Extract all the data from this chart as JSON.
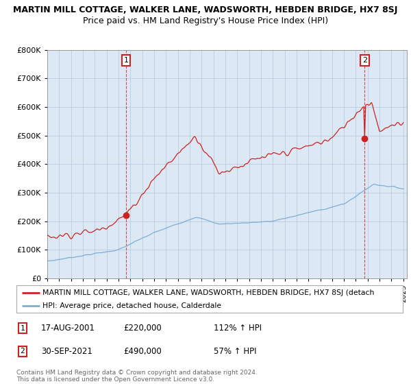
{
  "title": "MARTIN MILL COTTAGE, WALKER LANE, WADSWORTH, HEBDEN BRIDGE, HX7 8SJ",
  "subtitle": "Price paid vs. HM Land Registry's House Price Index (HPI)",
  "ylim": [
    0,
    800000
  ],
  "yticks": [
    0,
    100000,
    200000,
    300000,
    400000,
    500000,
    600000,
    700000,
    800000
  ],
  "ytick_labels": [
    "£0",
    "£100K",
    "£200K",
    "£300K",
    "£400K",
    "£500K",
    "£600K",
    "£700K",
    "£800K"
  ],
  "background_color": "#ffffff",
  "plot_bg_color": "#dde8f5",
  "grid_color": "#b8cce0",
  "red_color": "#cc2222",
  "blue_color": "#7bafd4",
  "point1_x": 2001.63,
  "point1_y": 220000,
  "point2_x": 2021.75,
  "point2_y": 490000,
  "xmin": 1995,
  "xmax": 2025.3,
  "legend_red": "MARTIN MILL COTTAGE, WALKER LANE, WADSWORTH, HEBDEN BRIDGE, HX7 8SJ (detach",
  "legend_blue": "HPI: Average price, detached house, Calderdale",
  "annotation1_date": "17-AUG-2001",
  "annotation1_price": "£220,000",
  "annotation1_hpi": "112% ↑ HPI",
  "annotation2_date": "30-SEP-2021",
  "annotation2_price": "£490,000",
  "annotation2_hpi": "57% ↑ HPI",
  "footnote": "Contains HM Land Registry data © Crown copyright and database right 2024.\nThis data is licensed under the Open Government Licence v3.0."
}
